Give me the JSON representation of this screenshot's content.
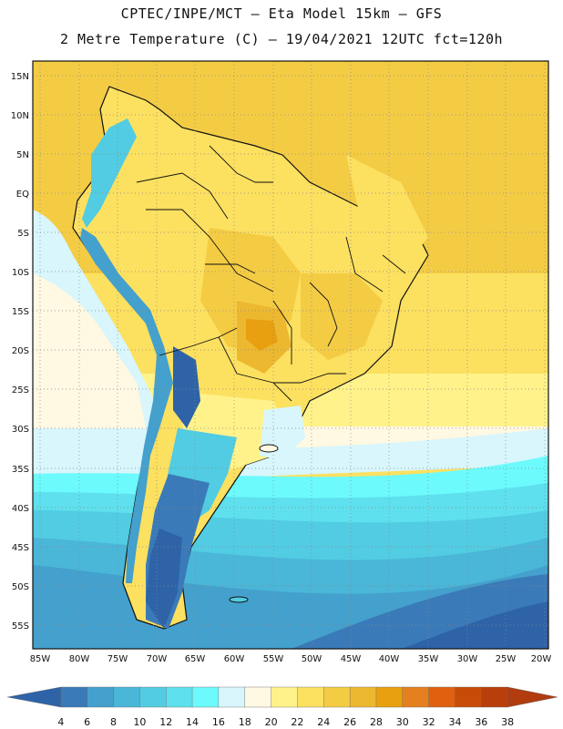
{
  "header": {
    "title_line1": "CPTEC/INPE/MCT – Eta Model 15km – GFS",
    "title_line2": "2 Metre Temperature (C) – 19/04/2021 12UTC fct=120h"
  },
  "map": {
    "lat_labels": [
      "15N",
      "10N",
      "5N",
      "EQ",
      "5S",
      "10S",
      "15S",
      "20S",
      "25S",
      "30S",
      "35S",
      "40S",
      "45S",
      "50S",
      "55S"
    ],
    "lon_labels": [
      "85W",
      "80W",
      "75W",
      "70W",
      "65W",
      "60W",
      "55W",
      "50W",
      "45W",
      "40W",
      "35W",
      "30W",
      "25W",
      "20W"
    ]
  },
  "colorbar": {
    "ticks": [
      "4",
      "6",
      "8",
      "10",
      "12",
      "14",
      "16",
      "18",
      "20",
      "22",
      "24",
      "26",
      "28",
      "30",
      "32",
      "34",
      "36",
      "38"
    ],
    "colors": [
      "#2e63a8",
      "#3a7ab8",
      "#44a0cc",
      "#4ab6d8",
      "#52cce2",
      "#5ee0ee",
      "#6cfafc",
      "#d8f6fc",
      "#fff8e2",
      "#fff28a",
      "#fce060",
      "#f4cc44",
      "#ecb830",
      "#e8a010",
      "#e48020",
      "#e06010",
      "#c84c08",
      "#b83e0c",
      "#b03c10"
    ]
  }
}
